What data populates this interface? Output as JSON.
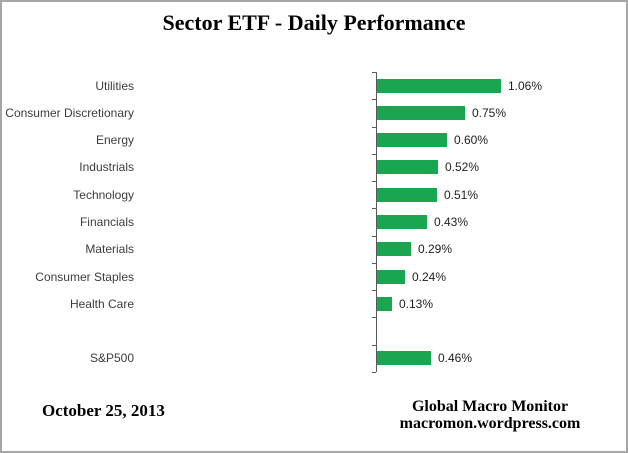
{
  "title": "Sector ETF - Daily Performance",
  "chart_data": {
    "type": "bar",
    "orientation": "horizontal",
    "title": "Sector ETF - Daily Performance",
    "categories": [
      "Utilities",
      "Consumer Discretionary",
      "Energy",
      "Industrials",
      "Technology",
      "Financials",
      "Materials",
      "Consumer Staples",
      "Health Care",
      "",
      "S&P500"
    ],
    "values": [
      1.06,
      0.75,
      0.6,
      0.52,
      0.51,
      0.43,
      0.29,
      0.24,
      0.13,
      null,
      0.46
    ],
    "value_labels": [
      "1.06%",
      "0.75%",
      "0.60%",
      "0.52%",
      "0.51%",
      "0.43%",
      "0.29%",
      "0.24%",
      "0.13%",
      null,
      "0.46%"
    ],
    "xlabel": "",
    "ylabel": "",
    "xlim": [
      0,
      1.2
    ],
    "grid": false,
    "legend": false,
    "data_labels": "outside-end",
    "bar_color": "#1aa551",
    "axis_color": "#595959",
    "category_label_color": "#3d3d3d",
    "value_label_color": "#1f1f1f"
  },
  "footer": {
    "date": "October 25, 2013",
    "attribution_line1": "Global Macro Monitor",
    "attribution_line2": "macromon.wordpress.com"
  }
}
